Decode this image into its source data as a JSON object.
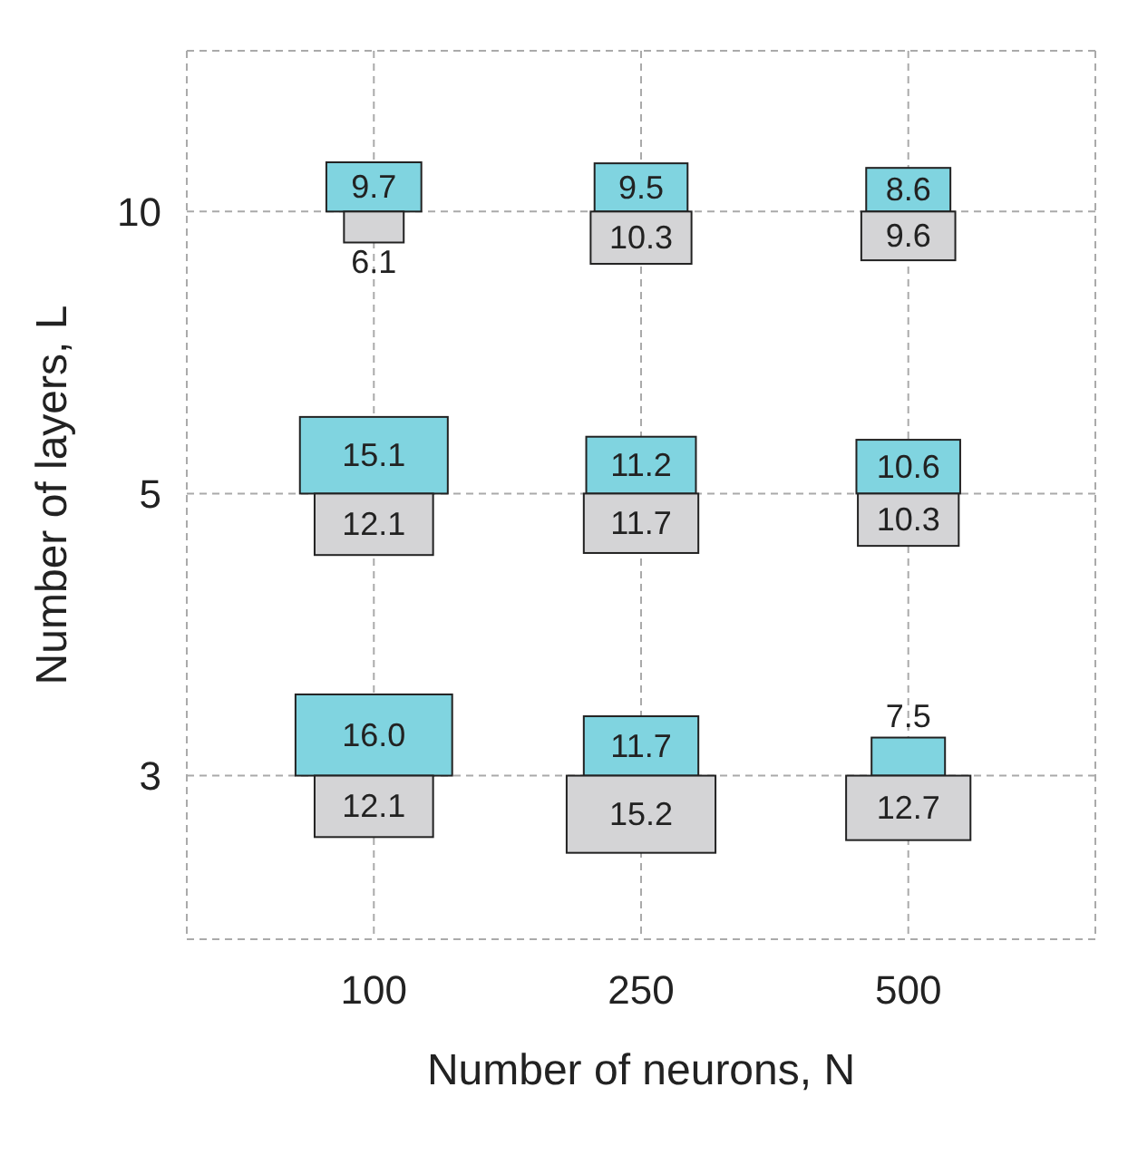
{
  "chart_data": {
    "type": "other",
    "xlabel": "Number of neurons, N",
    "ylabel": "Number of layers, L",
    "categories": [
      "100",
      "250",
      "500"
    ],
    "y_categories": [
      "10",
      "5",
      "3"
    ],
    "series": [
      {
        "color": "#80d4e0",
        "values": [
          9.7,
          9.5,
          8.6
        ],
        "value_labels": [
          "9.7",
          "9.5",
          "8.6"
        ]
      },
      {
        "color": "#d4d4d6",
        "values": [
          6.1,
          10.3,
          9.6
        ],
        "value_labels": [
          "6.1",
          "10.3",
          "9.6"
        ]
      },
      {
        "color": "#80d4e0",
        "values": [
          15.1,
          11.2,
          10.6
        ],
        "value_labels": [
          "15.1",
          "11.2",
          "10.6"
        ]
      },
      {
        "color": "#d4d4d6",
        "values": [
          12.1,
          11.7,
          10.3
        ],
        "value_labels": [
          "12.1",
          "11.7",
          "10.3"
        ]
      },
      {
        "color": "#80d4e0",
        "values": [
          16.0,
          11.7,
          7.5
        ],
        "value_labels": [
          "16.0",
          "11.7",
          "7.5"
        ]
      },
      {
        "color": "#d4d4d6",
        "values": [
          12.1,
          15.2,
          12.7
        ],
        "value_labels": [
          "12.1",
          "15.2",
          "12.7"
        ]
      }
    ]
  }
}
